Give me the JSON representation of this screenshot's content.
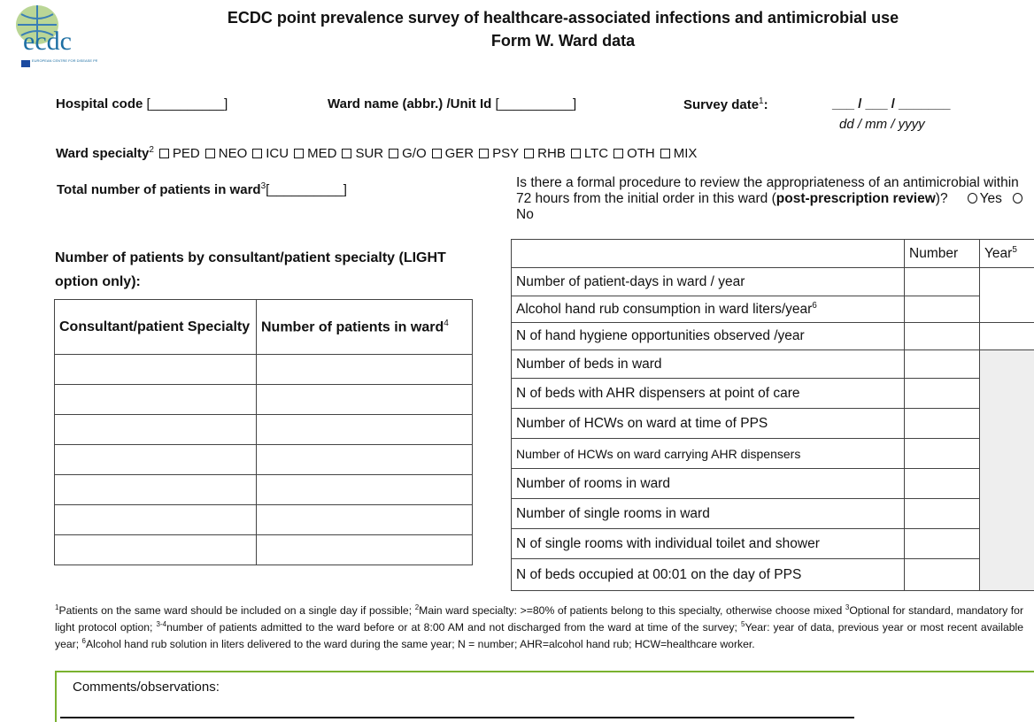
{
  "header": {
    "logo": "ecdc",
    "logo_caption": "EUROPEAN CENTRE FOR DISEASE PREVENTION AND CONTROL",
    "title": "ECDC point prevalence survey of healthcare-associated infections and antimicrobial use",
    "subtitle": "Form W. Ward data"
  },
  "fields": {
    "hospital_code": "Hospital code",
    "hospital_code_blank": "[__________]",
    "ward_name": "Ward name (abbr.) /Unit Id",
    "ward_name_blank": "[__________]",
    "survey_date": "Survey date",
    "survey_date_note": "1",
    "survey_date_colon": ":",
    "date_blank": "___ / ___ / _______",
    "date_format": "dd / mm / yyyy"
  },
  "ward_specialty": {
    "label": "Ward specialty",
    "note": "2",
    "options": [
      "PED",
      "NEO",
      "ICU",
      "MED",
      "SUR",
      "G/O",
      "GER",
      "PSY",
      "RHB",
      "LTC",
      "OTH",
      "MIX"
    ]
  },
  "total_patients": {
    "label": "Total number of patients in ward",
    "note": "3",
    "blank": "[__________]"
  },
  "review": {
    "question_start": "Is there a formal procedure to review the appropriateness of an antimicrobial within 72 hours from the initial order in this ward (",
    "question_bold": "post-prescription review",
    "question_end": ")?",
    "options": [
      "Yes",
      "No"
    ]
  },
  "consultant_section": {
    "heading": "Number of patients by consultant/patient specialty (LIGHT option only):",
    "columns": [
      "Consultant/patient Specialty",
      "Number of patients in ward"
    ],
    "column_note": "4"
  },
  "ward_table": {
    "columns": [
      "Number",
      "Year"
    ],
    "year_note": "5",
    "rows": [
      {
        "label": "Number of patient-days in ward / year"
      },
      {
        "label": "Alcohol hand rub consumption in ward liters/year",
        "note": "6"
      },
      {
        "label": "N of hand hygiene opportunities observed /year"
      },
      {
        "label": "Number of beds in ward"
      },
      {
        "label": "N of beds with AHR dispensers at point of care"
      },
      {
        "label": "Number of HCWs on ward at time of PPS"
      },
      {
        "label": "Number of HCWs on ward carrying AHR dispensers"
      },
      {
        "label": "Number of rooms in ward"
      },
      {
        "label": "Number of single rooms in ward"
      },
      {
        "label": "N of single rooms with individual toilet and shower"
      },
      {
        "label": "N of beds occupied at 00:01 on the day of PPS"
      }
    ]
  },
  "footnotes": [
    {
      "mark": "1",
      "text": "Patients on the same ward should be included on a single day if possible;"
    },
    {
      "mark": "2",
      "text": "Main ward specialty: >=80% of patients belong to this specialty, otherwise choose mixed"
    },
    {
      "mark": "3",
      "text": "Optional for standard, mandatory for light protocol option;"
    },
    {
      "mark": "3-4",
      "text": "number of patients admitted to the ward before or at 8:00 AM and not discharged from the ward at time of the survey;"
    },
    {
      "mark": "5",
      "text": "Year: year of data, previous year or most recent available year;"
    },
    {
      "mark": "6",
      "text": "Alcohol hand rub solution in liters delivered to the ward during the same year; N = number; AHR=alcohol hand rub; HCW=healthcare worker."
    }
  ],
  "comments": {
    "label": "Comments/observations:"
  }
}
